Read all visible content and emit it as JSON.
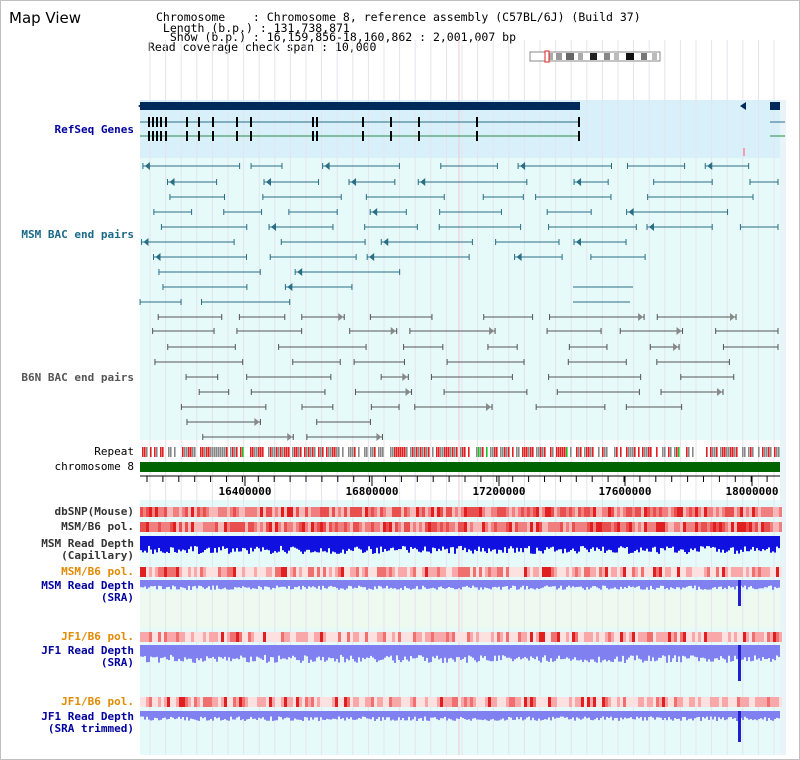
{
  "page": {
    "title": "Map View"
  },
  "info": {
    "chromosome": "Chromosome    : Chromosome 8, reference assembly (C57BL/6J) (Build 37)",
    "length": " Length (b.p.) : 131,738,871",
    "show": "  Show (b.p.) : 16,159,856-18,160,862 : 2,001,007 bp",
    "coverage": "Read coverage check span : 10,000"
  },
  "tracks": {
    "refseq": "RefSeq Genes",
    "msm_bac": "MSM BAC end pairs",
    "b6n_bac": "B6N BAC end pairs",
    "repeat": "Repeat",
    "chromosome": "chromosome 8",
    "dbsnp": "dbSNP(Mouse)",
    "msm_b6_pol_1": "MSM/B6 pol.",
    "msm_depth_cap_1": "MSM Read Depth",
    "msm_depth_cap_2": "(Capillary)",
    "msm_b6_pol_2": "MSM/B6 pol.",
    "msm_depth_sra_1": "MSM Read Depth",
    "msm_depth_sra_2": "(SRA)",
    "jf1_pol_1": "JF1/B6 pol.",
    "jf1_depth_1a": "JF1 Read Depth",
    "jf1_depth_1b": "(SRA)",
    "jf1_pol_2": "JF1/B6 pol.",
    "jf1_depth_2a": "JF1 Read Depth",
    "jf1_depth_2b": "(SRA trimmed)"
  },
  "axis": {
    "ticks": [
      "16400000",
      "16800000",
      "17200000",
      "17600000",
      "18000000"
    ]
  },
  "colors": {
    "navy": "#002a5a",
    "teal": "#2a6e86",
    "gray": "#555555",
    "red": "#e02020",
    "green": "#006400",
    "blue": "#1010e0",
    "lightblue": "#8080f0",
    "orange": "#e08a00",
    "label_blue": "#0000a0",
    "label_teal": "#1a6a86"
  }
}
